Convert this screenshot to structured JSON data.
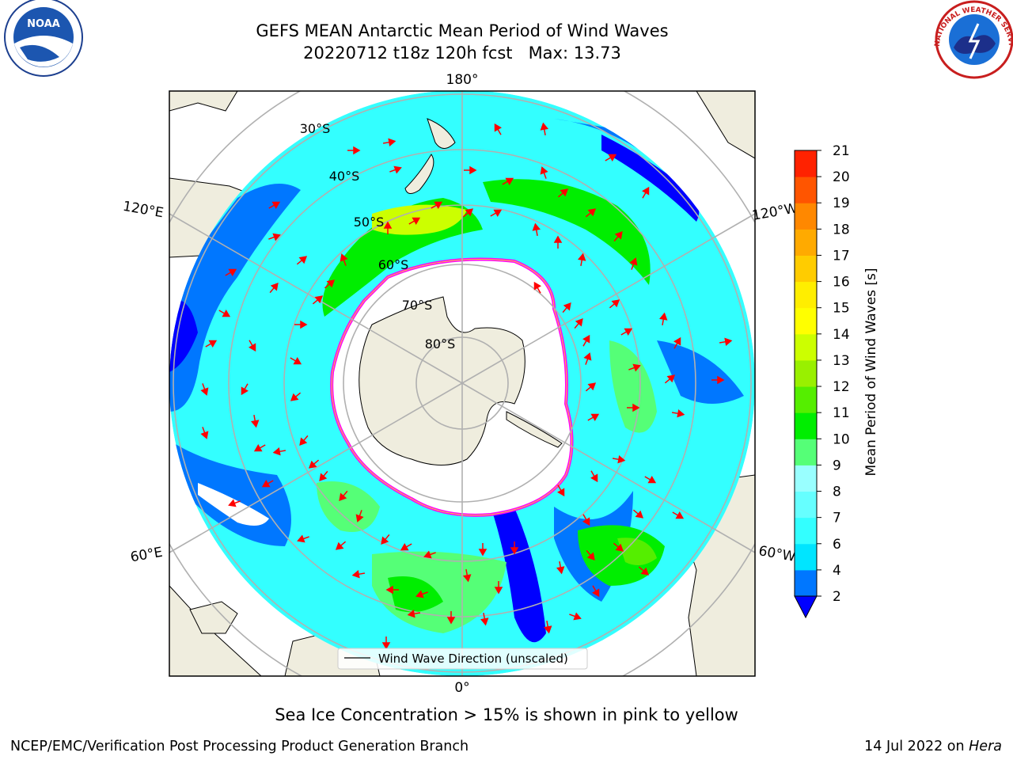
{
  "title": {
    "line1": "GEFS MEAN Antarctic Mean Period of Wind Waves",
    "line2": "20220712 t18z 120h fcst   Max: 13.73"
  },
  "map": {
    "projection": "south-polar-stereographic",
    "longitude_labels": {
      "top": "180°",
      "bottom": "0°",
      "left_upper": "120°E",
      "left_lower": "60°E",
      "right_upper": "120°W",
      "right_lower": "60°W"
    },
    "latitude_labels": [
      "30°S",
      "40°S",
      "50°S",
      "60°S",
      "70°S",
      "80°S"
    ],
    "legend_label": "Wind Wave Direction (unscaled)",
    "arrow_color": "#ff0000",
    "land_color": "#efedde",
    "sea_ice_colors": [
      "#ff00ff",
      "#ff66cc",
      "#ffcc33"
    ]
  },
  "colorbar": {
    "label": "Mean Period of Wind Waves [s]",
    "ticks": [
      "2",
      "4",
      "6",
      "7",
      "8",
      "9",
      "10",
      "11",
      "12",
      "13",
      "14",
      "15",
      "16",
      "17",
      "18",
      "19",
      "20",
      "21"
    ],
    "colors": [
      "#0077ff",
      "#00e5ff",
      "#33ffff",
      "#66ffff",
      "#99ffff",
      "#55ff77",
      "#00ee00",
      "#55ee00",
      "#99f000",
      "#ccff00",
      "#ffff00",
      "#ffee00",
      "#ffcc00",
      "#ffaa00",
      "#ff8800",
      "#ff5500",
      "#ff2200"
    ],
    "under_color": "#0000ff"
  },
  "caption": "Sea Ice Concentration > 15% is shown in pink to yellow",
  "footer": {
    "left": "NCEP/EMC/Verification Post Processing Product Generation Branch",
    "right_prefix": "14 Jul 2022 on ",
    "right_italic": "Hera"
  },
  "logos": {
    "noaa_text": "NOAA",
    "noaa_ring": "NATIONAL OCEANIC AND ATMOSPHERIC ADMINISTRATION · U.S. DEPARTMENT OF COMMERCE",
    "nws_ring": "NATIONAL WEATHER SERVICE"
  }
}
